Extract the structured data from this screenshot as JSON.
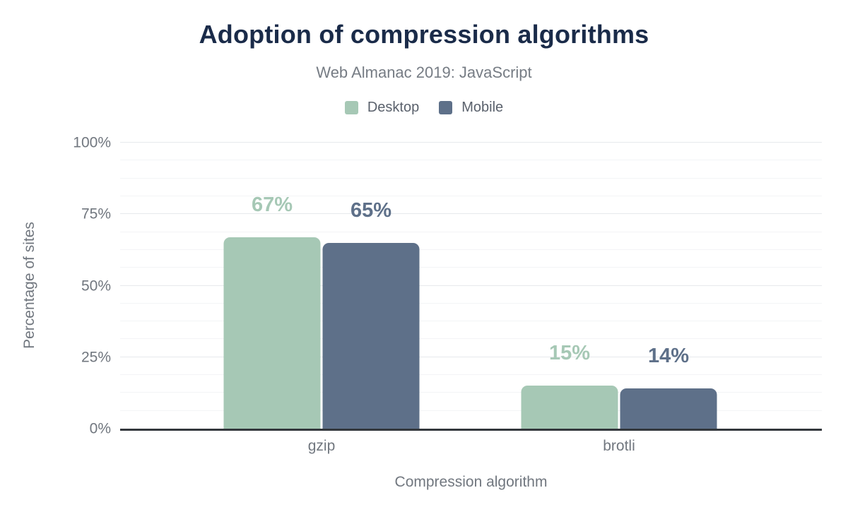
{
  "chart_data": {
    "type": "bar",
    "title": "Adoption of compression algorithms",
    "subtitle": "Web Almanac 2019: JavaScript",
    "xlabel": "Compression algorithm",
    "ylabel": "Percentage of sites",
    "categories": [
      "gzip",
      "brotli"
    ],
    "series": [
      {
        "name": "Desktop",
        "color": "#a6c8b5",
        "values": [
          67,
          15
        ],
        "labels": [
          "67%",
          "15%"
        ]
      },
      {
        "name": "Mobile",
        "color": "#5e7089",
        "values": [
          65,
          14
        ],
        "labels": [
          "65%",
          "14%"
        ]
      }
    ],
    "ylim": [
      0,
      100
    ],
    "yticks": [
      {
        "value": 0,
        "label": "0%"
      },
      {
        "value": 25,
        "label": "25%"
      },
      {
        "value": 50,
        "label": "50%"
      },
      {
        "value": 75,
        "label": "75%"
      },
      {
        "value": 100,
        "label": "100%"
      }
    ],
    "minor_grid_step": 6.25,
    "grid": "horizontal",
    "legend_position": "top"
  },
  "colors": {
    "background": "#ffffff",
    "title": "#1a2b49",
    "subtitle": "#767c84",
    "legend_text": "#5a616c",
    "axis_text": "#71777f",
    "major_gridline": "#e7e9ec",
    "minor_gridline": "#f3f4f6",
    "baseline": "#33373c"
  }
}
